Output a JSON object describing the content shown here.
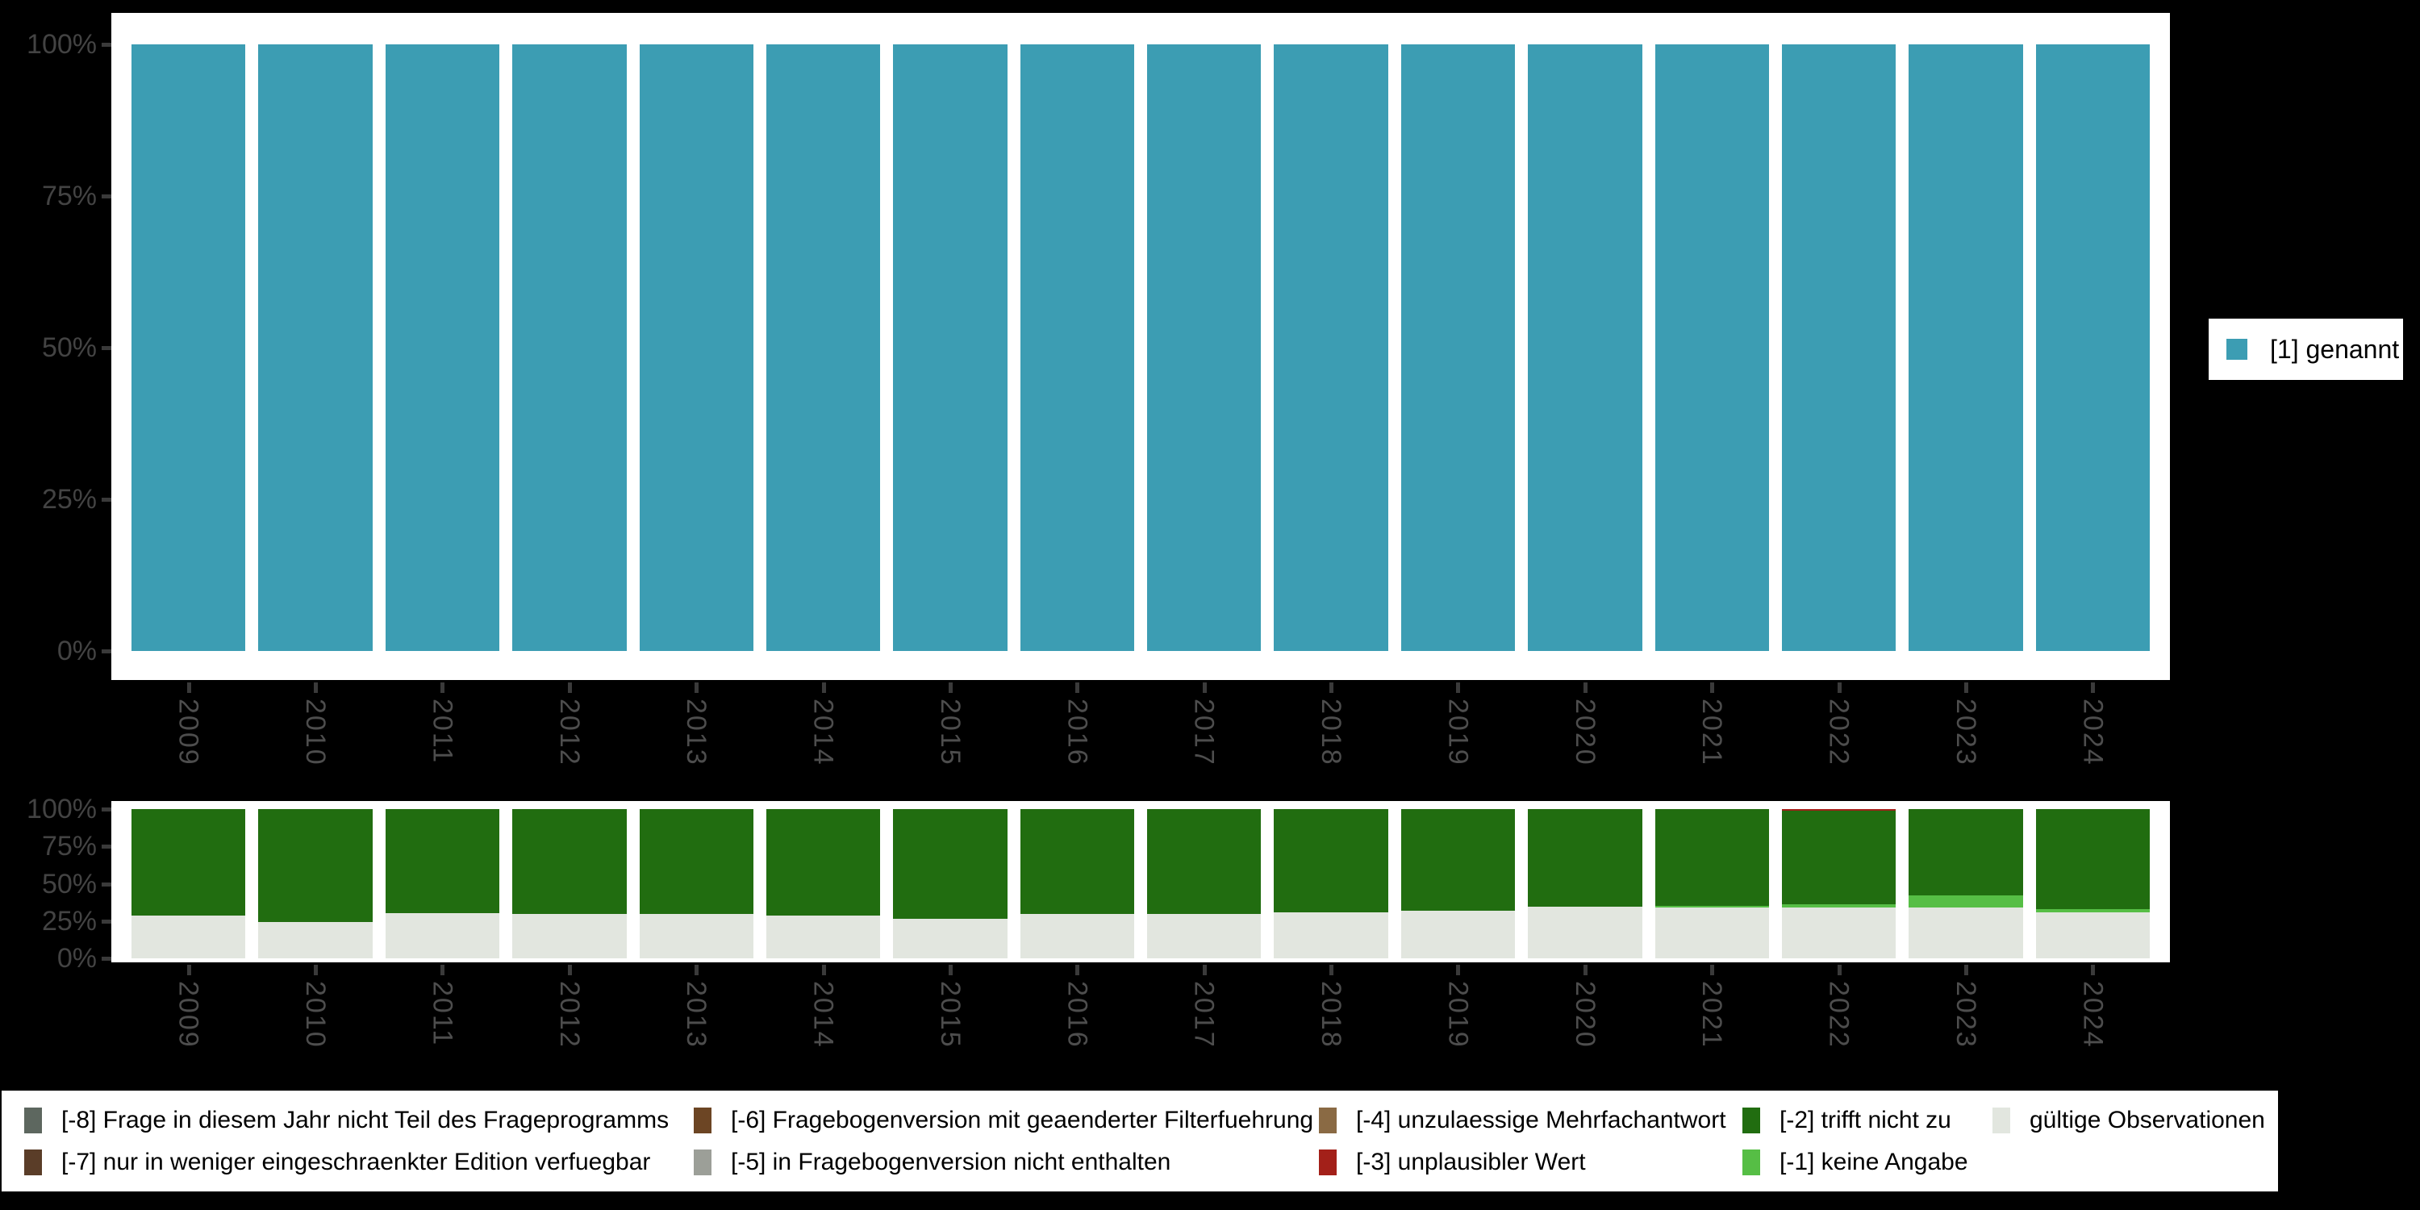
{
  "figure": {
    "background": "#000000",
    "panel_background": "#ffffff",
    "axis_text_color": "#434343",
    "year_text_color": "#4d4d4d",
    "tick_color": "#3a3a3a"
  },
  "years": [
    "2009",
    "2010",
    "2011",
    "2012",
    "2013",
    "2014",
    "2015",
    "2016",
    "2017",
    "2018",
    "2019",
    "2020",
    "2021",
    "2022",
    "2023",
    "2024"
  ],
  "y_axis_ticks": [
    "100%",
    "75%",
    "50%",
    "25%",
    "0%"
  ],
  "legend_right": {
    "label": "[1] genannt",
    "color": "#3C9DB3"
  },
  "legend_bottom": [
    {
      "label": "[-8] Frage in diesem Jahr nicht Teil des Frageprogramms",
      "color": "#5D675F"
    },
    {
      "label": "[-7] nur in weniger eingeschraenkter Edition verfuegbar",
      "color": "#5A3D28"
    },
    {
      "label": "[-6] Fragebogenversion mit geaenderter Filterfuehrung",
      "color": "#6C4524"
    },
    {
      "label": "[-5] in Fragebogenversion nicht enthalten",
      "color": "#9C9F98"
    },
    {
      "label": "[-4] unzulaessige Mehrfachantwort",
      "color": "#8A6A44"
    },
    {
      "label": "[-3] unplausibler Wert",
      "color": "#A32019"
    },
    {
      "label": "[-2] trifft nicht zu",
      "color": "#216D10"
    },
    {
      "label": "[-1] keine Angabe",
      "color": "#56BE45"
    },
    {
      "label": "gültige Observationen",
      "color": "#E2E6DF"
    }
  ],
  "chart_data": [
    {
      "type": "bar",
      "stacked": true,
      "title": "",
      "categories": [
        "2009",
        "2010",
        "2011",
        "2012",
        "2013",
        "2014",
        "2015",
        "2016",
        "2017",
        "2018",
        "2019",
        "2020",
        "2021",
        "2022",
        "2023",
        "2024"
      ],
      "xlabel": "",
      "ylabel": "",
      "ylim": [
        0,
        100
      ],
      "ytick_labels": [
        "0%",
        "25%",
        "50%",
        "75%",
        "100%"
      ],
      "grid": false,
      "legend_position": "right",
      "series": [
        {
          "name": "[1] genannt",
          "color": "#3C9DB3",
          "values": [
            100,
            100,
            100,
            100,
            100,
            100,
            100,
            100,
            100,
            100,
            100,
            100,
            100,
            100,
            100,
            100
          ]
        }
      ]
    },
    {
      "type": "bar",
      "stacked": true,
      "title": "",
      "categories": [
        "2009",
        "2010",
        "2011",
        "2012",
        "2013",
        "2014",
        "2015",
        "2016",
        "2017",
        "2018",
        "2019",
        "2020",
        "2021",
        "2022",
        "2023",
        "2024"
      ],
      "xlabel": "",
      "ylabel": "",
      "ylim": [
        0,
        100
      ],
      "ytick_labels": [
        "0%",
        "25%",
        "50%",
        "75%",
        "100%"
      ],
      "grid": false,
      "legend_position": "bottom",
      "stack_order_note": "series listed bottom-to-top",
      "series": [
        {
          "name": "gültige Observationen",
          "color": "#E2E6DF",
          "values": [
            28.5,
            24.5,
            30.5,
            29.5,
            29.5,
            28.5,
            26.5,
            29.5,
            29.5,
            31,
            32,
            34.5,
            34,
            34.3,
            34.2,
            31
          ]
        },
        {
          "name": "[-1] keine Angabe",
          "color": "#56BE45",
          "values": [
            0,
            0,
            0,
            0,
            0,
            0,
            0,
            0,
            0,
            0,
            0,
            0,
            1.3,
            1.7,
            7.8,
            1.9
          ]
        },
        {
          "name": "[-2] trifft nicht zu",
          "color": "#216D10",
          "values": [
            71.5,
            75.5,
            69.5,
            70.5,
            70.5,
            71.5,
            73.5,
            70.5,
            70.5,
            69,
            68,
            65.5,
            64.7,
            63.2,
            58,
            67.1
          ]
        },
        {
          "name": "[-3] unplausibler Wert",
          "color": "#A32019",
          "values": [
            0,
            0,
            0,
            0,
            0,
            0,
            0,
            0,
            0,
            0,
            0,
            0,
            0,
            0.8,
            0,
            0
          ]
        }
      ]
    }
  ]
}
